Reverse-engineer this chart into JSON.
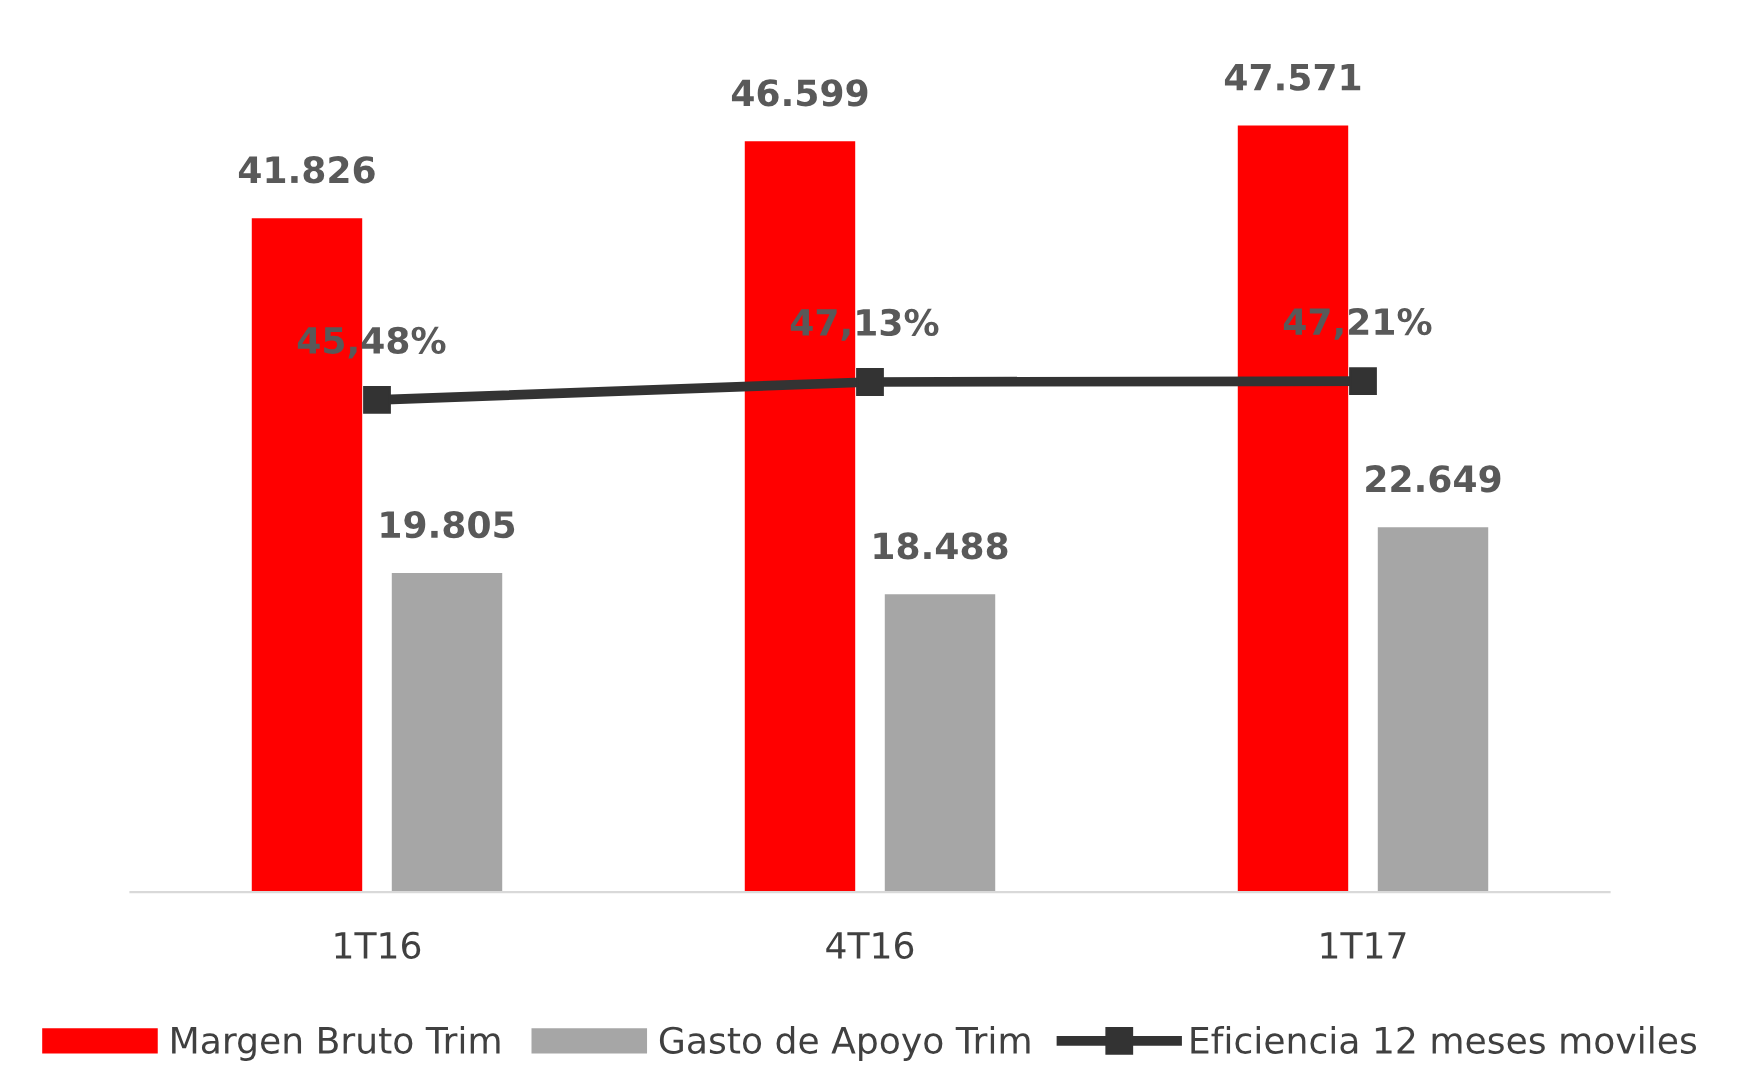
{
  "chart_data": {
    "type": "bar",
    "categories": [
      "1T16",
      "4T16",
      "1T17"
    ],
    "series": [
      {
        "name": "Margen Bruto Trim",
        "color": "#ff0000",
        "values": [
          41826,
          46599,
          47571
        ],
        "value_labels": [
          "41.826",
          "46.599",
          "47.571"
        ]
      },
      {
        "name": "Gasto de Apoyo Trim",
        "color": "#a6a6a6",
        "values": [
          19805,
          18488,
          22649
        ],
        "value_labels": [
          "19.805",
          "18.488",
          "22.649"
        ]
      },
      {
        "name": "Eficiencia 12 meses moviles",
        "type": "line",
        "axis": "y2",
        "color": "#333333",
        "marker": "square",
        "values": [
          45.48,
          47.13,
          47.21
        ],
        "value_labels": [
          "45,48%",
          "47,13%",
          "47,21%"
        ]
      }
    ],
    "tick_labels": "x",
    "grid": false,
    "legend": "bottom"
  }
}
